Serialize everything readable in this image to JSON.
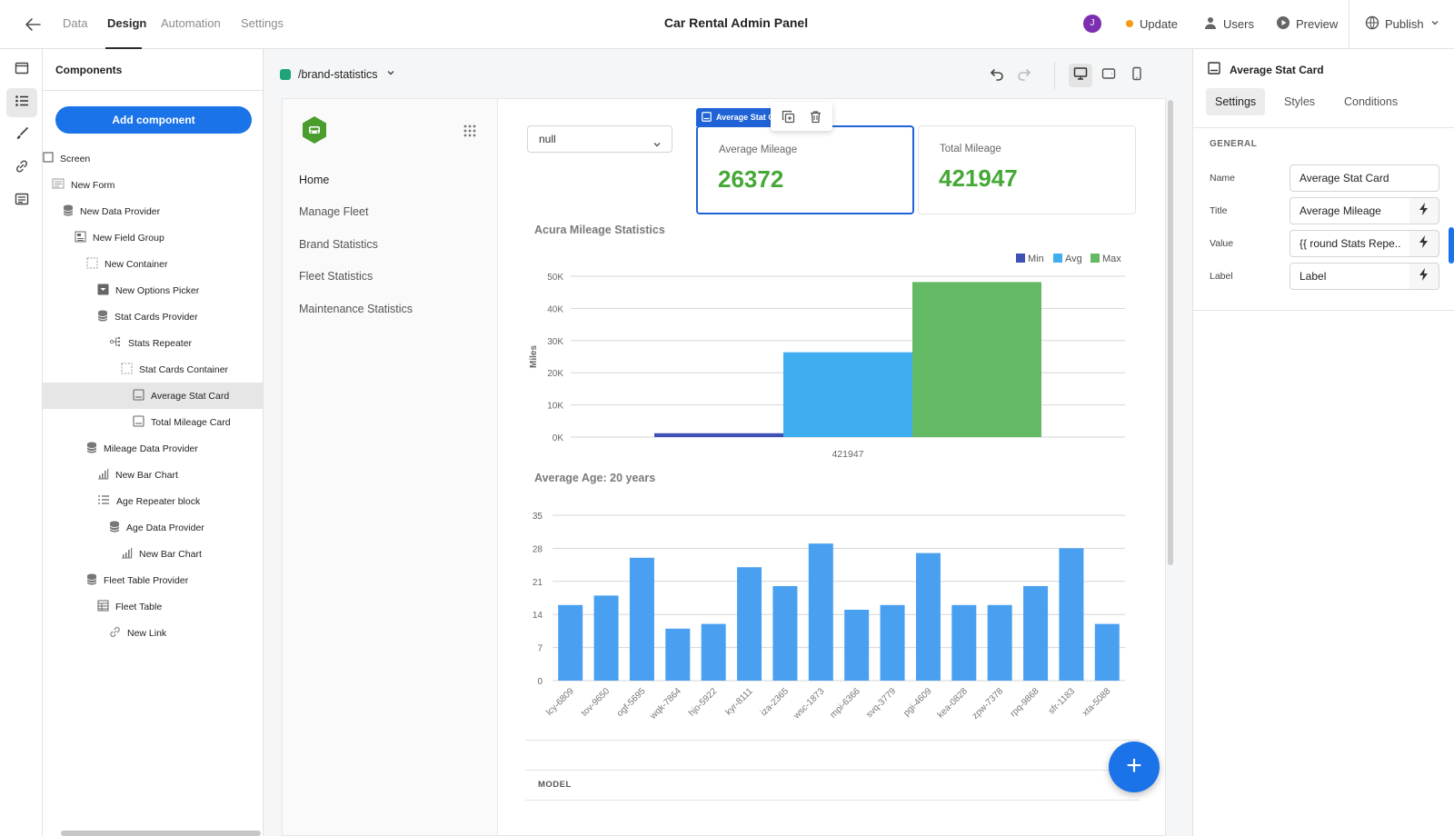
{
  "topbar": {
    "tabs": [
      "Data",
      "Design",
      "Automation",
      "Settings"
    ],
    "active_tab": "Design",
    "app_title": "Car Rental Admin Panel",
    "avatar_initial": "J",
    "update_label": "Update",
    "users_label": "Users",
    "preview_label": "Preview",
    "publish_label": "Publish"
  },
  "components": {
    "title": "Components",
    "add_button": "Add component",
    "tree": [
      {
        "label": "Screen",
        "icon": "screen-icon"
      },
      {
        "label": "New Form",
        "icon": "form-icon"
      },
      {
        "label": "New Data Provider",
        "icon": "database-icon"
      },
      {
        "label": "New Field Group",
        "icon": "field-group-icon"
      },
      {
        "label": "New Container",
        "icon": "container-icon"
      },
      {
        "label": "New Options Picker",
        "icon": "picker-icon"
      },
      {
        "label": "Stat Cards Provider",
        "icon": "database-icon"
      },
      {
        "label": "Stats Repeater",
        "icon": "repeater-icon"
      },
      {
        "label": "Stat Cards Container",
        "icon": "container-icon"
      },
      {
        "label": "Average Stat Card",
        "icon": "card-icon",
        "selected": true
      },
      {
        "label": "Total Mileage Card",
        "icon": "card-icon"
      },
      {
        "label": "Mileage Data Provider",
        "icon": "database-icon"
      },
      {
        "label": "New Bar Chart",
        "icon": "bar-chart-icon"
      },
      {
        "label": "Age Repeater block",
        "icon": "list-icon"
      },
      {
        "label": "Age Data Provider",
        "icon": "database-icon"
      },
      {
        "label": "New Bar Chart",
        "icon": "bar-chart-icon"
      },
      {
        "label": "Fleet Table Provider",
        "icon": "database-icon"
      },
      {
        "label": "Fleet Table",
        "icon": "table-icon"
      },
      {
        "label": "New Link",
        "icon": "link-icon"
      }
    ]
  },
  "canvas": {
    "route": "/brand-statistics",
    "nav_links": [
      "Home",
      "Manage Fleet",
      "Brand Statistics",
      "Fleet Statistics",
      "Maintenance Statistics"
    ],
    "brand_select_value": "null",
    "selection_badge": "Average Stat Card",
    "stat_cards": [
      {
        "title": "Average Mileage",
        "value": "26372"
      },
      {
        "title": "Total Mileage",
        "value": "421947"
      }
    ],
    "table_header": "MODEL",
    "fab_symbol": "+"
  },
  "chart_data": [
    {
      "type": "bar",
      "title": "Acura Mileage Statistics",
      "categories": [
        "421947"
      ],
      "series": [
        {
          "name": "Min",
          "values": [
            1200
          ],
          "color": "#3f51b5"
        },
        {
          "name": "Avg",
          "values": [
            26372
          ],
          "color": "#3eaef0"
        },
        {
          "name": "Max",
          "values": [
            48200
          ],
          "color": "#64b964"
        }
      ],
      "xlabel": "",
      "ylabel": "Miles",
      "ylim": [
        0,
        50000
      ],
      "yticks": [
        "0K",
        "10K",
        "20K",
        "30K",
        "40K",
        "50K"
      ],
      "legend": "top-right",
      "grid": true
    },
    {
      "type": "bar",
      "title": "Average Age: 20 years",
      "categories": [
        "lcy-6809",
        "tov-9650",
        "ogf-5695",
        "wqk-7864",
        "hjo-5922",
        "kyr-8111",
        "iza-2365",
        "wsc-1873",
        "mpi-6366",
        "svq-3779",
        "pgi-4609",
        "kea-0828",
        "zpw-7378",
        "rpq-9868",
        "sfr-1183",
        "xta-5088"
      ],
      "values": [
        16,
        18,
        26,
        11,
        12,
        24,
        20,
        29,
        15,
        16,
        27,
        16,
        16,
        20,
        28,
        12
      ],
      "color": "#4aa0f0",
      "ylim": [
        0,
        35
      ],
      "yticks": [
        0,
        7,
        14,
        21,
        28,
        35
      ],
      "grid": true
    }
  ],
  "settings": {
    "component_name": "Average Stat Card",
    "tabs": [
      "Settings",
      "Styles",
      "Conditions"
    ],
    "active_tab": "Settings",
    "section": "GENERAL",
    "fields": [
      {
        "label": "Name",
        "value": "Average Stat Card"
      },
      {
        "label": "Title",
        "value": "Average Mileage"
      },
      {
        "label": "Value",
        "value": "{{ round Stats Repe..."
      },
      {
        "label": "Label",
        "value": "Label"
      }
    ]
  }
}
